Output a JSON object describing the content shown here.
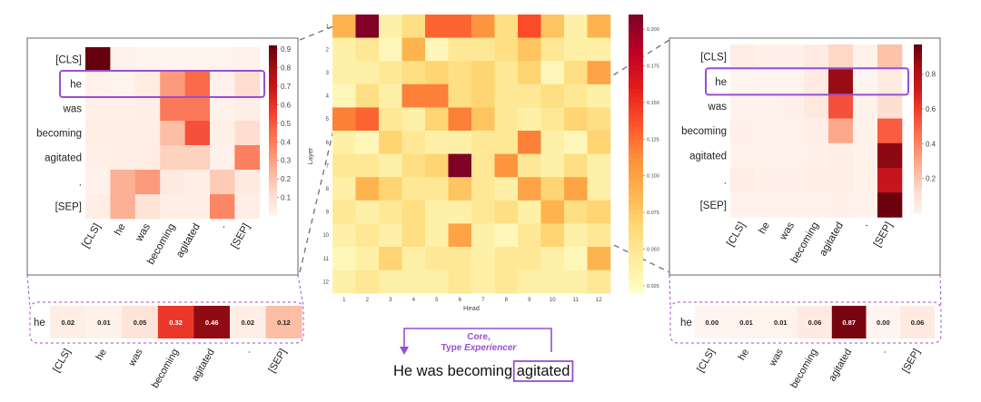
{
  "colors": {
    "accent": "#9b4dd1",
    "frame": "#666666",
    "connector": "#777777",
    "cmap": [
      "#ffffcc",
      "#ffeda0",
      "#fed976",
      "#feb24c",
      "#fd8d3c",
      "#fc4e2a",
      "#e31a1c",
      "#bd0026",
      "#800026"
    ],
    "reds": [
      "#fff5f0",
      "#fee0d2",
      "#fcbba1",
      "#fc9272",
      "#fb6a4a",
      "#ef3b2c",
      "#cb181d",
      "#a50f15",
      "#67000d"
    ]
  },
  "tokens": [
    "[CLS]",
    "he",
    "was",
    "becoming",
    "agitated",
    ".",
    "[SEP]"
  ],
  "annotation": {
    "line1": "Core,",
    "line2_prefix": "Type ",
    "line2_italic": "Experiencer",
    "sentence_prefix": "He was becoming ",
    "sentence_highlight": "agitated"
  },
  "chart_data": [
    {
      "id": "layer_head_heatmap",
      "type": "heatmap",
      "title": "",
      "xlabel": "Head",
      "ylabel": "Layer",
      "x_ticks": [
        "1",
        "2",
        "3",
        "4",
        "5",
        "6",
        "7",
        "8",
        "9",
        "10",
        "11",
        "12"
      ],
      "y_ticks": [
        "1",
        "2",
        "3",
        "4",
        "5",
        "6",
        "7",
        "8",
        "9",
        "10",
        "11",
        "12"
      ],
      "colorbar_ticks": [
        "0.025",
        "0.050",
        "0.075",
        "0.100",
        "0.125",
        "0.150",
        "0.175",
        "0.200"
      ],
      "colorbar_range": [
        0.02,
        0.21
      ],
      "highlight_cells": [
        [
          1,
          2
        ],
        [
          7,
          6
        ]
      ],
      "values": [
        [
          0.09,
          0.21,
          0.04,
          0.06,
          0.13,
          0.13,
          0.11,
          0.06,
          0.14,
          0.08,
          0.04,
          0.09
        ],
        [
          0.04,
          0.05,
          0.03,
          0.09,
          0.03,
          0.05,
          0.05,
          0.06,
          0.08,
          0.05,
          0.04,
          0.04
        ],
        [
          0.04,
          0.04,
          0.05,
          0.06,
          0.07,
          0.06,
          0.07,
          0.05,
          0.07,
          0.03,
          0.06,
          0.1
        ],
        [
          0.03,
          0.06,
          0.04,
          0.12,
          0.12,
          0.06,
          0.07,
          0.05,
          0.05,
          0.06,
          0.05,
          0.04
        ],
        [
          0.12,
          0.13,
          0.05,
          0.04,
          0.07,
          0.12,
          0.08,
          0.05,
          0.04,
          0.05,
          0.07,
          0.06
        ],
        [
          0.04,
          0.03,
          0.07,
          0.05,
          0.04,
          0.04,
          0.05,
          0.05,
          0.12,
          0.04,
          0.03,
          0.07
        ],
        [
          0.05,
          0.05,
          0.04,
          0.06,
          0.07,
          0.21,
          0.05,
          0.11,
          0.05,
          0.04,
          0.06,
          0.04
        ],
        [
          0.04,
          0.09,
          0.07,
          0.05,
          0.05,
          0.08,
          0.05,
          0.04,
          0.1,
          0.07,
          0.1,
          0.04
        ],
        [
          0.05,
          0.04,
          0.05,
          0.06,
          0.04,
          0.04,
          0.05,
          0.06,
          0.04,
          0.09,
          0.06,
          0.07
        ],
        [
          0.04,
          0.05,
          0.04,
          0.06,
          0.04,
          0.1,
          0.04,
          0.03,
          0.05,
          0.07,
          0.04,
          0.05
        ],
        [
          0.03,
          0.04,
          0.07,
          0.04,
          0.05,
          0.05,
          0.04,
          0.05,
          0.05,
          0.04,
          0.03,
          0.09
        ],
        [
          0.04,
          0.05,
          0.04,
          0.04,
          0.04,
          0.05,
          0.04,
          0.05,
          0.04,
          0.04,
          0.04,
          0.05
        ]
      ]
    },
    {
      "id": "attention_left",
      "type": "heatmap",
      "xlabels": [
        "[CLS]",
        "he",
        "was",
        "becoming",
        "agitated",
        ".",
        "[SEP]"
      ],
      "ylabels": [
        "[CLS]",
        "he",
        "was",
        "becoming",
        "agitated",
        ".",
        "[SEP]"
      ],
      "colorbar_ticks": [
        "0.1",
        "0.2",
        "0.3",
        "0.4",
        "0.5",
        "0.6",
        "0.7",
        "0.8",
        "0.9"
      ],
      "colorbar_range": [
        0,
        0.92
      ],
      "highlight_row": "he",
      "values": [
        [
          0.92,
          0.02,
          0.01,
          0.01,
          0.01,
          0.01,
          0.02
        ],
        [
          0.02,
          0.01,
          0.05,
          0.32,
          0.46,
          0.02,
          0.12
        ],
        [
          0.03,
          0.03,
          0.04,
          0.42,
          0.42,
          0.02,
          0.04
        ],
        [
          0.04,
          0.04,
          0.04,
          0.22,
          0.52,
          0.03,
          0.12
        ],
        [
          0.03,
          0.04,
          0.05,
          0.16,
          0.16,
          0.02,
          0.4
        ],
        [
          0.02,
          0.26,
          0.32,
          0.06,
          0.04,
          0.18,
          0.06
        ],
        [
          0.04,
          0.26,
          0.1,
          0.04,
          0.04,
          0.38,
          0.04
        ]
      ]
    },
    {
      "id": "attention_right",
      "type": "heatmap",
      "xlabels": [
        "[CLS]",
        "he",
        "was",
        "becoming",
        "agitated",
        ".",
        "[SEP]"
      ],
      "ylabels": [
        "[CLS]",
        "he",
        "was",
        "becoming",
        "agitated",
        ".",
        "[SEP]"
      ],
      "colorbar_ticks": [
        "0.2",
        "0.4",
        "0.6",
        "0.8"
      ],
      "colorbar_range": [
        0,
        0.97
      ],
      "highlight_row": "he",
      "values": [
        [
          0.05,
          0.03,
          0.03,
          0.06,
          0.15,
          0.02,
          0.22
        ],
        [
          0.0,
          0.01,
          0.01,
          0.06,
          0.87,
          0.0,
          0.06
        ],
        [
          0.02,
          0.02,
          0.03,
          0.07,
          0.55,
          0.02,
          0.12
        ],
        [
          0.03,
          0.02,
          0.02,
          0.04,
          0.3,
          0.02,
          0.52
        ],
        [
          0.02,
          0.02,
          0.02,
          0.03,
          0.04,
          0.02,
          0.9
        ],
        [
          0.05,
          0.03,
          0.03,
          0.04,
          0.04,
          0.02,
          0.75
        ],
        [
          0.02,
          0.02,
          0.02,
          0.02,
          0.03,
          0.02,
          0.96
        ]
      ]
    },
    {
      "id": "row_left",
      "type": "heatmap",
      "row_label": "he",
      "xlabels": [
        "[CLS]",
        "he",
        "was",
        "becoming",
        "agitated",
        ".",
        "[SEP]"
      ],
      "values": [
        0.02,
        0.01,
        0.05,
        0.32,
        0.46,
        0.02,
        0.12
      ],
      "value_labels": [
        "0.02",
        "0.01",
        "0.05",
        "0.32",
        "0.46",
        "0.02",
        "0.12"
      ],
      "color_max": 0.5
    },
    {
      "id": "row_right",
      "type": "heatmap",
      "row_label": "he",
      "xlabels": [
        "[CLS]",
        "he",
        "was",
        "becoming",
        "agitated",
        ".",
        "[SEP]"
      ],
      "values": [
        0.0,
        0.01,
        0.01,
        0.06,
        0.87,
        0.0,
        0.06
      ],
      "value_labels": [
        "0.00",
        "0.01",
        "0.01",
        "0.06",
        "0.87",
        "0.00",
        "0.06"
      ],
      "color_max": 0.9
    }
  ]
}
